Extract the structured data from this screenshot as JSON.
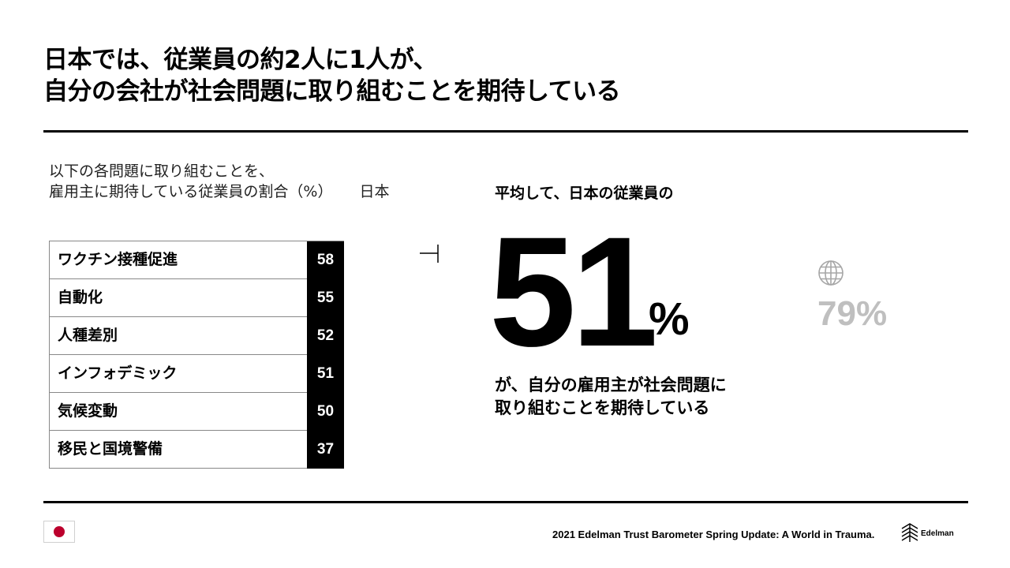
{
  "title": {
    "line1": "日本では、従業員の約2人に1人が、",
    "line2": "自分の会社が社会問題に取り組むことを期待している"
  },
  "subtitle": {
    "line1": "以下の各問題に取り組むことを、",
    "line2": "雇用主に期待している従業員の割合（%）",
    "country": "日本"
  },
  "chart_data": {
    "type": "table",
    "categories": [
      "ワクチン接種促進",
      "自動化",
      "人種差別",
      "インフォデミック",
      "気候変動",
      "移民と国境警備"
    ],
    "values": [
      58,
      55,
      52,
      51,
      50,
      37
    ]
  },
  "table": {
    "rows": [
      {
        "label": "ワクチン接種促進",
        "value": "58"
      },
      {
        "label": "自動化",
        "value": "55"
      },
      {
        "label": "人種差別",
        "value": "52"
      },
      {
        "label": "インフォデミック",
        "value": "51"
      },
      {
        "label": "気候変動",
        "value": "50"
      },
      {
        "label": "移民と国境警備",
        "value": "37"
      }
    ]
  },
  "average": {
    "lead": "平均して、日本の従業員の",
    "number": "51",
    "percent_sign": "%",
    "tail_line1": "が、自分の雇用主が社会問題に",
    "tail_line2": "取り組むことを期待している"
  },
  "global": {
    "icon": "globe-icon",
    "value": "79%"
  },
  "footer": {
    "flag": "japan-flag",
    "source": "2021 Edelman Trust Barometer Spring Update: A World in Trauma.",
    "logo_text": "Edelman"
  },
  "colors": {
    "accent": "#000000",
    "global_grey": "#bfbfbf",
    "flag_red": "#bc002d"
  }
}
